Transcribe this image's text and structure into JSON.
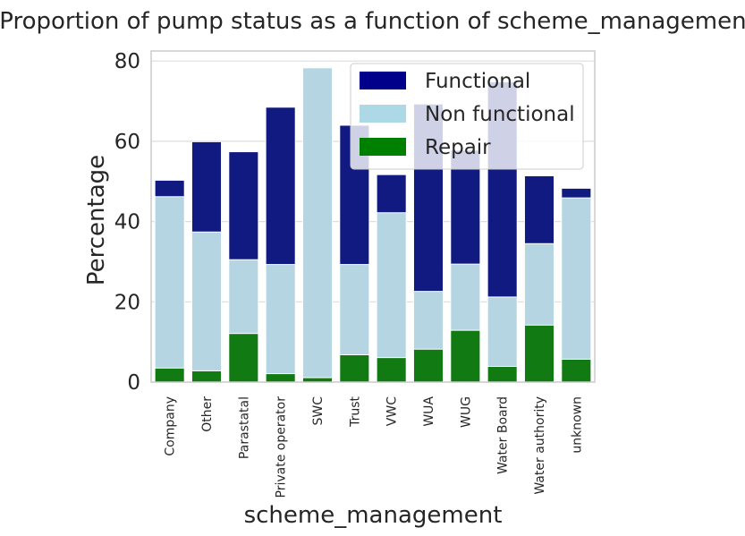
{
  "chart_data": {
    "type": "bar",
    "stacked": false,
    "title": "Proportion of pump status as a function of scheme_management",
    "xlabel": "scheme_management",
    "ylabel": "Percentage",
    "ylim": [
      0,
      82.5
    ],
    "yticks": [
      0,
      20,
      40,
      60,
      80
    ],
    "grid": true,
    "legend_position": "top-right",
    "categories": [
      "Company",
      "Other",
      "Parastatal",
      "Private operator",
      "SWC",
      "Trust",
      "VWC",
      "WUA",
      "WUG",
      "Water Board",
      "Water authority",
      "unknown"
    ],
    "series": [
      {
        "name": "Functional",
        "color": "#111a80",
        "legend_color": "#00008b",
        "values": [
          50.3,
          59.9,
          57.4,
          68.5,
          0,
          64.0,
          51.7,
          69.3,
          57.8,
          74.8,
          51.4,
          48.3
        ]
      },
      {
        "name": "Non functional",
        "color": "#b4d5e1",
        "legend_color": "#add8e6",
        "values": [
          46.2,
          37.4,
          30.5,
          29.3,
          78.3,
          29.3,
          42.2,
          22.6,
          29.4,
          21.2,
          34.5,
          45.9
        ]
      },
      {
        "name": "Repair",
        "color": "#127a13",
        "legend_color": "#008000",
        "values": [
          3.5,
          2.8,
          12.1,
          2.1,
          1.1,
          6.8,
          6.1,
          8.2,
          12.9,
          3.9,
          14.2,
          5.7
        ]
      }
    ]
  }
}
